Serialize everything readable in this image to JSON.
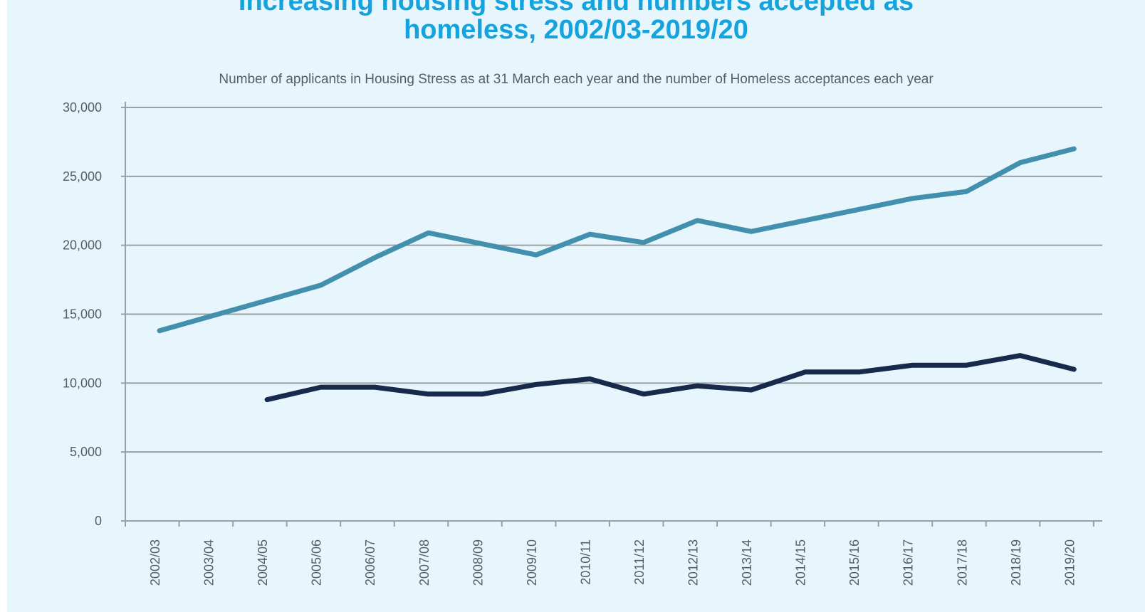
{
  "chart_data": {
    "type": "line",
    "title_lines": [
      "Increasing housing stress and numbers accepted as",
      "homeless, 2002/03-2019/20"
    ],
    "subtitle": "Number of applicants in Housing Stress as at 31 March each year and the number of Homeless acceptances each year",
    "xlabel": "",
    "ylabel": "",
    "categories": [
      "2002/03",
      "2003/04",
      "2004/05",
      "2005/06",
      "2006/07",
      "2007/08",
      "2008/09",
      "2009/10",
      "2010/11",
      "2011/12",
      "2012/13",
      "2013/14",
      "2014/15",
      "2015/16",
      "2016/17",
      "2017/18",
      "2018/19",
      "2019/20"
    ],
    "yticks": [
      "0",
      "5,000",
      "10,000",
      "15,000",
      "20,000",
      "25,000",
      "30,000"
    ],
    "ylim": [
      0,
      30000
    ],
    "grid": true,
    "legend": "none",
    "series": [
      {
        "values": [
          13800,
          14900,
          16000,
          17100,
          19100,
          20900,
          20100,
          19300,
          20800,
          20200,
          21800,
          21000,
          21800,
          22600,
          23400,
          23900,
          26000,
          27000
        ],
        "color": "#438fae"
      },
      {
        "values": [
          null,
          null,
          8800,
          9700,
          9700,
          9200,
          9200,
          9900,
          10300,
          9200,
          9800,
          9500,
          10800,
          10800,
          11300,
          11300,
          12000,
          11000
        ],
        "color": "#172a4b"
      }
    ]
  }
}
